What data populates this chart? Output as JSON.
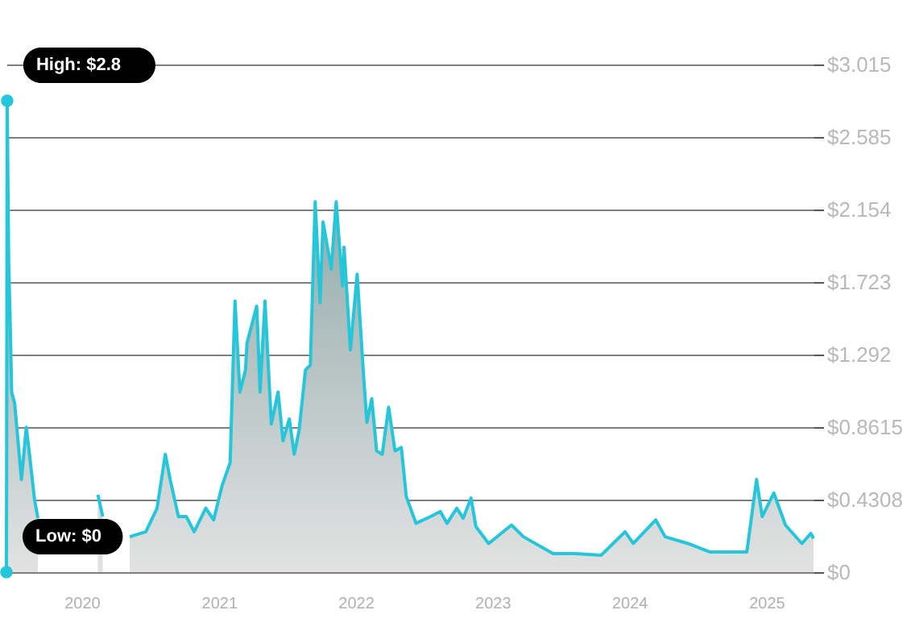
{
  "chart_data": {
    "type": "area",
    "x": [
      "2019-06-14",
      "2019-06-16",
      "2019-06-20",
      "2019-06-24",
      "2019-06-28",
      "2019-07-06",
      "2019-07-20",
      "2019-07-24",
      "2019-08-06",
      "2019-08-15",
      "2019-08-28",
      "2019-09-06",
      "2019-09-28",
      "2019-11-18",
      "2020-01-31",
      "2020-02-13",
      "2020-02-26",
      "2020-03-13",
      "2020-05-08",
      "2020-06-20",
      "2020-07-20",
      "2020-08-11",
      "2020-08-24",
      "2020-09-15",
      "2020-10-06",
      "2020-10-27",
      "2020-11-27",
      "2020-12-18",
      "2021-01-09",
      "2021-01-31",
      "2021-02-13",
      "2021-02-26",
      "2021-03-13",
      "2021-03-17",
      "2021-04-12",
      "2021-04-21",
      "2021-05-04",
      "2021-05-21",
      "2021-06-08",
      "2021-06-21",
      "2021-07-08",
      "2021-07-21",
      "2021-08-03",
      "2021-08-20",
      "2021-09-02",
      "2021-09-15",
      "2021-09-28",
      "2021-10-06",
      "2021-10-28",
      "2021-11-10",
      "2021-11-27",
      "2021-12-01",
      "2021-12-18",
      "2022-01-05",
      "2022-01-22",
      "2022-01-31",
      "2022-02-13",
      "2022-02-26",
      "2022-03-13",
      "2022-03-30",
      "2022-04-16",
      "2022-05-03",
      "2022-05-16",
      "2022-06-11",
      "2022-07-20",
      "2022-08-15",
      "2022-09-02",
      "2022-09-28",
      "2022-10-15",
      "2022-11-05",
      "2022-11-18",
      "2022-12-22",
      "2023-02-21",
      "2023-03-25",
      "2023-06-12",
      "2023-08-10",
      "2023-10-18",
      "2023-12-21",
      "2024-01-12",
      "2024-03-12",
      "2024-04-06",
      "2024-06-06",
      "2024-08-03",
      "2024-11-10",
      "2024-12-06",
      "2024-12-21",
      "2025-01-21",
      "2025-02-21",
      "2025-04-06",
      "2025-04-30",
      "2025-05-07"
    ],
    "series": [
      {
        "color": "#26c6da",
        "values": [
          0,
          2.8,
          1.84,
          1.48,
          1.07,
          1.0,
          0.65,
          0.55,
          0.86,
          0.69,
          0.43,
          0.32,
          null,
          null,
          null,
          0.46,
          0.33,
          null,
          0.21,
          0.24,
          0.38,
          0.7,
          0.55,
          0.33,
          0.33,
          0.24,
          0.38,
          0.31,
          0.51,
          0.65,
          1.61,
          1.07,
          1.2,
          1.36,
          1.58,
          1.07,
          1.61,
          0.88,
          1.07,
          0.78,
          0.91,
          0.7,
          0.84,
          1.2,
          1.23,
          2.2,
          1.6,
          2.08,
          1.8,
          2.2,
          1.7,
          1.93,
          1.32,
          1.77,
          1.17,
          0.89,
          1.03,
          0.72,
          0.7,
          0.98,
          0.72,
          0.74,
          0.45,
          0.29,
          0.33,
          0.36,
          0.29,
          0.38,
          0.32,
          0.44,
          0.27,
          0.17,
          0.28,
          0.21,
          0.11,
          0.11,
          0.1,
          0.24,
          0.17,
          0.31,
          0.21,
          0.17,
          0.12,
          0.12,
          0.55,
          0.33,
          0.47,
          0.28,
          0.17,
          0.23,
          0.2
        ]
      }
    ],
    "xlim": [
      "2019-06-14",
      "2025-05-07"
    ],
    "xticks": [
      "2020",
      "2021",
      "2022",
      "2023",
      "2024",
      "2025"
    ],
    "ylim": [
      0,
      3.015
    ],
    "yticks": [
      {
        "value": 0,
        "label": "$0"
      },
      {
        "value": 0.4308,
        "label": "$0.4308"
      },
      {
        "value": 0.8615,
        "label": "$0.8615"
      },
      {
        "value": 1.292,
        "label": "$1.292"
      },
      {
        "value": 1.723,
        "label": "$1.723"
      },
      {
        "value": 2.154,
        "label": "$2.154"
      },
      {
        "value": 2.585,
        "label": "$2.585"
      },
      {
        "value": 3.015,
        "label": "$3.015"
      }
    ],
    "grid": "y",
    "annotations": [
      {
        "text": "High: $2.8",
        "x": "2019-06-16",
        "y": 2.8
      },
      {
        "text": "Low: $0",
        "x": "2019-06-14",
        "y": 0
      }
    ]
  }
}
